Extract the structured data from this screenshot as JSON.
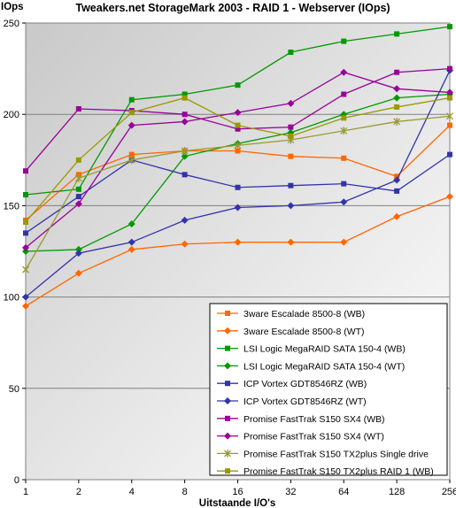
{
  "chart_data": {
    "type": "line",
    "title": "Tweakers.net StorageMark 2003 -  RAID 1 - Webserver (IOps)",
    "ylabel": "IOps",
    "xlabel": "Uitstaande I/O's",
    "categories": [
      "1",
      "2",
      "4",
      "8",
      "16",
      "32",
      "64",
      "128",
      "256"
    ],
    "ylim": [
      0,
      250
    ],
    "yticks": [
      0,
      50,
      100,
      150,
      200,
      250
    ],
    "grid": "horizontal",
    "plot_background": "gradient grey to white",
    "legend_position": "bottom-right",
    "series": [
      {
        "name": "3ware Escalade 8500-8 (WB)",
        "color": "#FF6600",
        "marker": "square",
        "values": [
          142,
          167,
          178,
          180,
          180,
          177,
          176,
          166,
          194
        ]
      },
      {
        "name": "3ware Escalade 8500-8 (WT)",
        "color": "#FF6600",
        "marker": "diamond",
        "values": [
          95,
          113,
          126,
          129,
          130,
          130,
          130,
          144,
          155
        ]
      },
      {
        "name": "LSI Logic MegaRAID SATA 150-4 (WB)",
        "color": "#009900",
        "marker": "square",
        "values": [
          156,
          159,
          208,
          211,
          216,
          234,
          240,
          244,
          248
        ]
      },
      {
        "name": "LSI Logic MegaRAID SATA 150-4 (WT)",
        "color": "#009900",
        "marker": "diamond",
        "values": [
          125,
          126,
          140,
          177,
          184,
          190,
          200,
          209,
          211
        ]
      },
      {
        "name": "ICP Vortex GDT8546RZ (WB)",
        "color": "#3333AA",
        "marker": "square",
        "values": [
          135,
          155,
          175,
          167,
          160,
          161,
          162,
          158,
          178
        ]
      },
      {
        "name": "ICP Vortex GDT8546RZ (WT)",
        "color": "#3333AA",
        "marker": "diamond",
        "values": [
          100,
          124,
          130,
          142,
          149,
          150,
          152,
          164,
          224
        ]
      },
      {
        "name": "Promise FastTrak S150 SX4 (WB)",
        "color": "#990099",
        "marker": "square",
        "values": [
          169,
          203,
          202,
          200,
          192,
          193,
          211,
          223,
          225
        ]
      },
      {
        "name": "Promise FastTrak S150 SX4 (WT)",
        "color": "#990099",
        "marker": "diamond",
        "values": [
          127,
          151,
          194,
          196,
          201,
          206,
          223,
          214,
          212
        ]
      },
      {
        "name": "Promise FastTrak S150 TX2plus Single drive",
        "color": "#999933",
        "marker": "star",
        "values": [
          115,
          165,
          175,
          180,
          183,
          186,
          191,
          196,
          199
        ]
      },
      {
        "name": "Promise FastTrak S150 TX2plus RAID 1 (WB)",
        "color": "#999900",
        "marker": "square",
        "values": [
          141,
          175,
          201,
          209,
          194,
          188,
          198,
          204,
          209
        ]
      }
    ]
  }
}
